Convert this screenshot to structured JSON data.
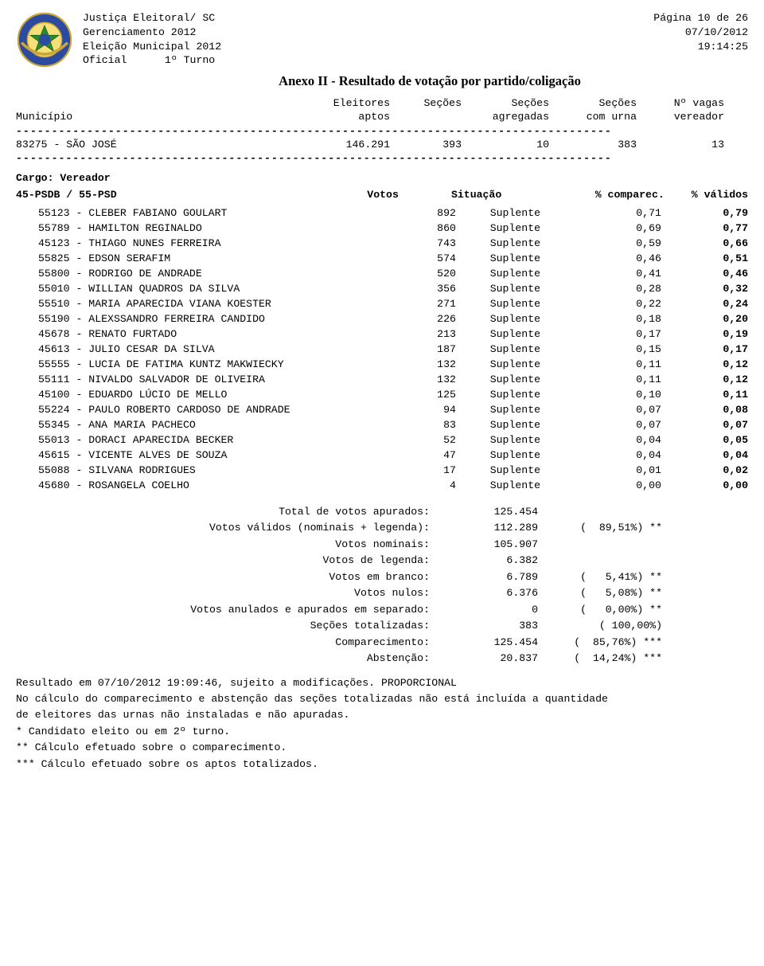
{
  "header": {
    "org1": "Justiça Eleitoral/ SC",
    "org2": "Gerenciamento 2012",
    "org3": "Eleição Municipal 2012",
    "org4_a": "Oficial",
    "org4_b": "1º Turno",
    "page": "Página 10 de  26",
    "date": "07/10/2012",
    "time": "19:14:25"
  },
  "title": "Anexo II - Resultado de votação por partido/coligação",
  "columns": {
    "municipio": "Município",
    "eleitores1": "Eleitores",
    "eleitores2": "aptos",
    "secoes": "Seções",
    "secoes_ag1": "Seções",
    "secoes_ag2": "agregadas",
    "secoes_ur1": "Seções",
    "secoes_ur2": "com urna",
    "nvagas1": "Nº vagas",
    "nvagas2": "vereador"
  },
  "muni": {
    "name": "83275 - SÃO JOSÉ",
    "eleitores": "146.291",
    "secoes": "393",
    "agreg": "10",
    "urna": "383",
    "vagas": "13"
  },
  "cargo": "Cargo: Vereador",
  "party": "45-PSDB / 55-PSD",
  "party_cols": {
    "votos": "Votos",
    "situacao": "Situação",
    "comparec": "% comparec.",
    "validos": "% válidos"
  },
  "candidates": [
    {
      "n": "55123 - CLEBER FABIANO GOULART",
      "v": "892",
      "s": "Suplente",
      "c": "0,71",
      "p": "0,79"
    },
    {
      "n": "55789 - HAMILTON REGINALDO",
      "v": "860",
      "s": "Suplente",
      "c": "0,69",
      "p": "0,77"
    },
    {
      "n": "45123 - THIAGO NUNES FERREIRA",
      "v": "743",
      "s": "Suplente",
      "c": "0,59",
      "p": "0,66"
    },
    {
      "n": "55825 - EDSON SERAFIM",
      "v": "574",
      "s": "Suplente",
      "c": "0,46",
      "p": "0,51"
    },
    {
      "n": "55800 - RODRIGO DE ANDRADE",
      "v": "520",
      "s": "Suplente",
      "c": "0,41",
      "p": "0,46"
    },
    {
      "n": "55010 - WILLIAN QUADROS DA SILVA",
      "v": "356",
      "s": "Suplente",
      "c": "0,28",
      "p": "0,32"
    },
    {
      "n": "55510 - MARIA APARECIDA VIANA KOESTER",
      "v": "271",
      "s": "Suplente",
      "c": "0,22",
      "p": "0,24"
    },
    {
      "n": "55190 - ALEXSSANDRO FERREIRA CANDIDO",
      "v": "226",
      "s": "Suplente",
      "c": "0,18",
      "p": "0,20"
    },
    {
      "n": "45678 - RENATO FURTADO",
      "v": "213",
      "s": "Suplente",
      "c": "0,17",
      "p": "0,19"
    },
    {
      "n": "45613 - JULIO CESAR DA SILVA",
      "v": "187",
      "s": "Suplente",
      "c": "0,15",
      "p": "0,17"
    },
    {
      "n": "55555 - LUCIA DE FATIMA KUNTZ MAKWIECKY",
      "v": "132",
      "s": "Suplente",
      "c": "0,11",
      "p": "0,12"
    },
    {
      "n": "55111 - NIVALDO SALVADOR DE OLIVEIRA",
      "v": "132",
      "s": "Suplente",
      "c": "0,11",
      "p": "0,12"
    },
    {
      "n": "45100 - EDUARDO LÚCIO DE MELLO",
      "v": "125",
      "s": "Suplente",
      "c": "0,10",
      "p": "0,11"
    },
    {
      "n": "55224 - PAULO ROBERTO CARDOSO DE ANDRADE",
      "v": "94",
      "s": "Suplente",
      "c": "0,07",
      "p": "0,08"
    },
    {
      "n": "55345 - ANA MARIA PACHECO",
      "v": "83",
      "s": "Suplente",
      "c": "0,07",
      "p": "0,07"
    },
    {
      "n": "55013 - DORACI APARECIDA BECKER",
      "v": "52",
      "s": "Suplente",
      "c": "0,04",
      "p": "0,05"
    },
    {
      "n": "45615 - VICENTE ALVES DE SOUZA",
      "v": "47",
      "s": "Suplente",
      "c": "0,04",
      "p": "0,04"
    },
    {
      "n": "55088 - SILVANA RODRIGUES",
      "v": "17",
      "s": "Suplente",
      "c": "0,01",
      "p": "0,02"
    },
    {
      "n": "45680 - ROSANGELA COELHO",
      "v": "4",
      "s": "Suplente",
      "c": "0,00",
      "p": "0,00"
    }
  ],
  "totals": [
    {
      "label": "Total de votos apurados:",
      "val": "125.454",
      "pct": ""
    },
    {
      "label": "Votos válidos (nominais + legenda):",
      "val": "112.289",
      "pct": "(  89,51%) **"
    },
    {
      "label": "Votos nominais:",
      "val": "105.907",
      "pct": ""
    },
    {
      "label": "Votos de legenda:",
      "val": "6.382",
      "pct": ""
    },
    {
      "label": "Votos em branco:",
      "val": "6.789",
      "pct": "(   5,41%) **"
    },
    {
      "label": "Votos nulos:",
      "val": "6.376",
      "pct": "(   5,08%) **"
    },
    {
      "label": "Votos anulados e apurados em separado:",
      "val": "0",
      "pct": "(   0,00%) **"
    },
    {
      "label": "Seções totalizadas:",
      "val": "383",
      "pct": "( 100,00%)"
    },
    {
      "label": "Comparecimento:",
      "val": "125.454",
      "pct": "(  85,76%) ***"
    },
    {
      "label": "Abstenção:",
      "val": "20.837",
      "pct": "(  14,24%) ***"
    }
  ],
  "footer": {
    "l1": "Resultado em 07/10/2012 19:09:46, sujeito a modificações. PROPORCIONAL",
    "l2": "No cálculo do comparecimento e abstenção das seções totalizadas não está incluída a quantidade",
    "l3": "de eleitores das urnas não instaladas e não apuradas.",
    "l4": "* Candidato eleito ou em 2º turno.",
    "l5": "** Cálculo efetuado sobre o comparecimento.",
    "l6": "*** Cálculo efetuado sobre os aptos totalizados."
  },
  "dashes": "------------------------------------------------------------------------------------"
}
